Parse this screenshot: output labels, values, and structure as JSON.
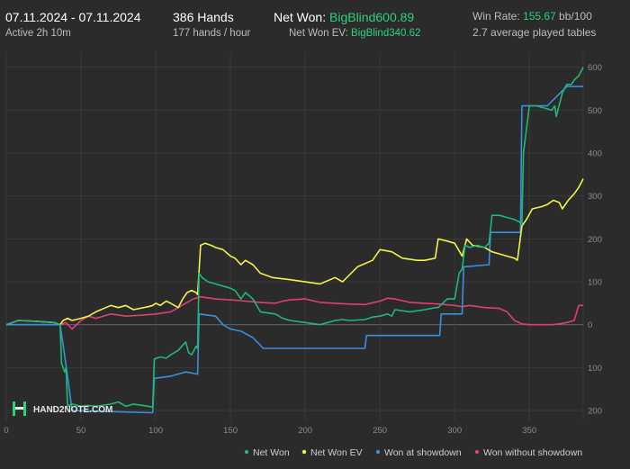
{
  "header": {
    "date_range": "07.11.2024 - 07.11.2024",
    "active_time": "Active 2h 10m",
    "hands": "386 Hands",
    "hands_per_hour": "177 hands / hour",
    "net_won_label": "Net Won: ",
    "net_won_value": "BigBlind600.89",
    "net_won_ev_label": "Net Won  EV: ",
    "net_won_ev_value": "BigBlind340.62",
    "win_rate_label": "Win Rate: ",
    "win_rate_value": "155.67",
    "win_rate_unit": " bb/100",
    "avg_tables": "2.7 average played tables"
  },
  "logo": {
    "text": "HAND2NOTE.COM"
  },
  "colors": {
    "net_won": "#1fb87a",
    "net_won_ev": "#f2f24a",
    "won_at_showdown": "#3a8fe0",
    "won_without_showdown": "#e0406e",
    "accent_green": "#2bd27c",
    "background": "#2b2b2b",
    "grid": "#3d3d3d"
  },
  "chart_data": {
    "type": "line",
    "xlim": [
      0,
      386
    ],
    "ylim": [
      -225,
      635
    ],
    "x_ticks": [
      0,
      50,
      100,
      150,
      200,
      250,
      300,
      350
    ],
    "x_tick_labels": [
      "0",
      "50",
      "100",
      "150",
      "200",
      "250",
      "300",
      "350"
    ],
    "y_ticks": [
      -200,
      -100,
      0,
      100,
      200,
      300,
      400,
      500,
      600
    ],
    "y_tick_labels": [
      "200",
      "100",
      "0",
      "100",
      "200",
      "300",
      "400",
      "500",
      "600"
    ],
    "legend_position": "bottom-right",
    "series": [
      {
        "name": "Net Won",
        "color": "#1fb87a",
        "x": [
          0,
          8,
          20,
          32,
          36,
          37,
          39,
          40,
          41,
          44,
          50,
          55,
          60,
          70,
          75,
          80,
          85,
          95,
          98,
          99,
          103,
          107,
          110,
          115,
          120,
          122,
          124,
          127,
          128,
          129,
          130,
          131,
          135,
          140,
          145,
          150,
          153,
          157,
          160,
          165,
          170,
          180,
          185,
          190,
          200,
          210,
          220,
          225,
          230,
          240,
          245,
          250,
          255,
          258,
          260,
          270,
          280,
          287,
          289,
          295,
          300,
          303,
          305,
          307,
          310,
          315,
          320,
          323,
          325,
          330,
          335,
          340,
          343,
          345,
          346,
          350,
          355,
          360,
          365,
          367,
          368,
          372,
          375,
          378,
          380,
          383,
          386
        ],
        "y": [
          0,
          10,
          8,
          5,
          0,
          -90,
          -110,
          -100,
          -190,
          -185,
          -190,
          -188,
          -190,
          -185,
          -180,
          -190,
          -185,
          -190,
          -192,
          -80,
          -75,
          -78,
          -70,
          -60,
          -40,
          -65,
          -70,
          -50,
          -55,
          120,
          115,
          110,
          100,
          95,
          90,
          85,
          80,
          60,
          75,
          60,
          30,
          25,
          15,
          10,
          5,
          0,
          10,
          12,
          10,
          12,
          18,
          20,
          25,
          20,
          35,
          30,
          35,
          40,
          40,
          60,
          60,
          120,
          130,
          185,
          180,
          185,
          180,
          190,
          255,
          255,
          250,
          245,
          240,
          235,
          400,
          510,
          510,
          505,
          500,
          510,
          485,
          540,
          560,
          560,
          570,
          580,
          600
        ]
      },
      {
        "name": "Net Won  EV",
        "color": "#f2f24a",
        "x": [
          0,
          8,
          20,
          32,
          36,
          38,
          41,
          44,
          50,
          55,
          60,
          70,
          75,
          80,
          85,
          95,
          98,
          100,
          103,
          107,
          110,
          115,
          118,
          121,
          124,
          127,
          128,
          130,
          133,
          137,
          140,
          145,
          150,
          153,
          157,
          160,
          165,
          170,
          178,
          190,
          200,
          210,
          220,
          225,
          235,
          245,
          250,
          258,
          265,
          275,
          280,
          287,
          289,
          295,
          300,
          305,
          308,
          312,
          320,
          325,
          330,
          335,
          340,
          342,
          345,
          348,
          352,
          358,
          362,
          366,
          370,
          372,
          376,
          380,
          383,
          386
        ],
        "y": [
          0,
          10,
          8,
          5,
          0,
          10,
          15,
          10,
          15,
          20,
          30,
          45,
          40,
          45,
          35,
          42,
          45,
          50,
          45,
          55,
          50,
          40,
          60,
          75,
          80,
          75,
          70,
          185,
          190,
          185,
          180,
          175,
          160,
          155,
          140,
          150,
          140,
          120,
          110,
          105,
          100,
          95,
          110,
          100,
          135,
          150,
          175,
          170,
          155,
          150,
          150,
          155,
          200,
          195,
          190,
          160,
          200,
          185,
          180,
          170,
          165,
          160,
          155,
          150,
          230,
          245,
          270,
          275,
          280,
          290,
          285,
          270,
          290,
          305,
          320,
          340
        ]
      },
      {
        "name": "Won at showdown",
        "color": "#3a8fe0",
        "x": [
          0,
          36,
          40,
          44,
          98,
          99,
          110,
          120,
          128,
          129,
          140,
          145,
          150,
          157,
          165,
          172,
          190,
          200,
          215,
          240,
          241,
          260,
          290,
          291,
          305,
          306,
          323,
          324,
          344,
          345,
          362,
          375,
          380,
          386
        ],
        "y": [
          0,
          0,
          -95,
          -200,
          -205,
          -125,
          -120,
          -110,
          -115,
          25,
          20,
          0,
          -10,
          -15,
          -30,
          -55,
          -55,
          -55,
          -55,
          -55,
          -25,
          -25,
          -25,
          25,
          25,
          135,
          140,
          215,
          215,
          510,
          510,
          555,
          555,
          555
        ]
      },
      {
        "name": "Won without showdown",
        "color": "#e0406e",
        "x": [
          0,
          20,
          36,
          40,
          44,
          50,
          55,
          60,
          70,
          80,
          90,
          100,
          110,
          115,
          120,
          125,
          130,
          140,
          150,
          160,
          170,
          180,
          185,
          190,
          200,
          210,
          220,
          230,
          240,
          250,
          255,
          260,
          270,
          280,
          290,
          300,
          305,
          310,
          320,
          330,
          335,
          340,
          345,
          350,
          355,
          360,
          365,
          370,
          375,
          380,
          383,
          386
        ],
        "y": [
          0,
          0,
          0,
          5,
          -10,
          10,
          20,
          15,
          25,
          20,
          22,
          25,
          30,
          40,
          50,
          60,
          65,
          60,
          58,
          55,
          52,
          50,
          55,
          58,
          60,
          52,
          50,
          48,
          47,
          55,
          62,
          60,
          52,
          50,
          48,
          45,
          42,
          45,
          40,
          38,
          30,
          10,
          2,
          0,
          0,
          0,
          0,
          2,
          5,
          10,
          45,
          45
        ]
      }
    ]
  }
}
